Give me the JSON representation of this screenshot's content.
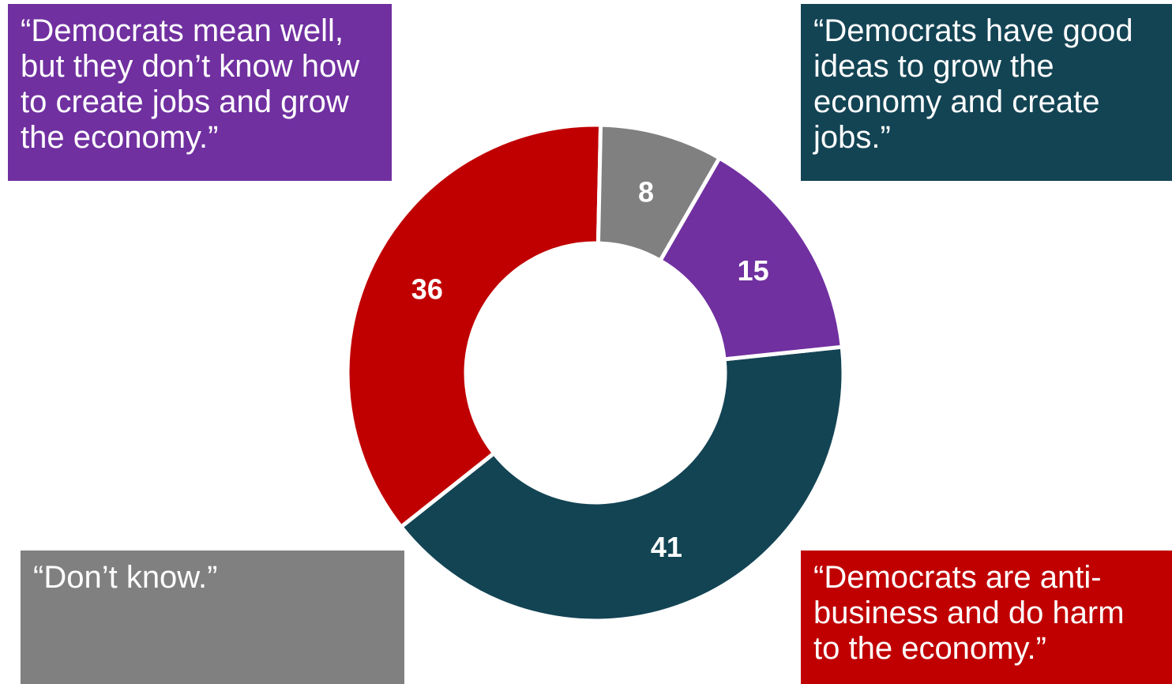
{
  "chart_data": {
    "type": "pie",
    "style": "donut",
    "slices": [
      {
        "label": "“Democrats have good ideas to grow the economy and create jobs.”",
        "value": 41,
        "color": "#134454"
      },
      {
        "label": "“Democrats are anti-business and do harm to the economy.”",
        "value": 36,
        "color": "#C00000"
      },
      {
        "label": "“Don’t know.”",
        "value": 8,
        "color": "#808080"
      },
      {
        "label": "“Democrats mean well, but they don’t know how to create jobs and grow the economy.”",
        "value": 15,
        "color": "#7030A0"
      }
    ],
    "legend": "labels in colored boxes at the four corners"
  }
}
